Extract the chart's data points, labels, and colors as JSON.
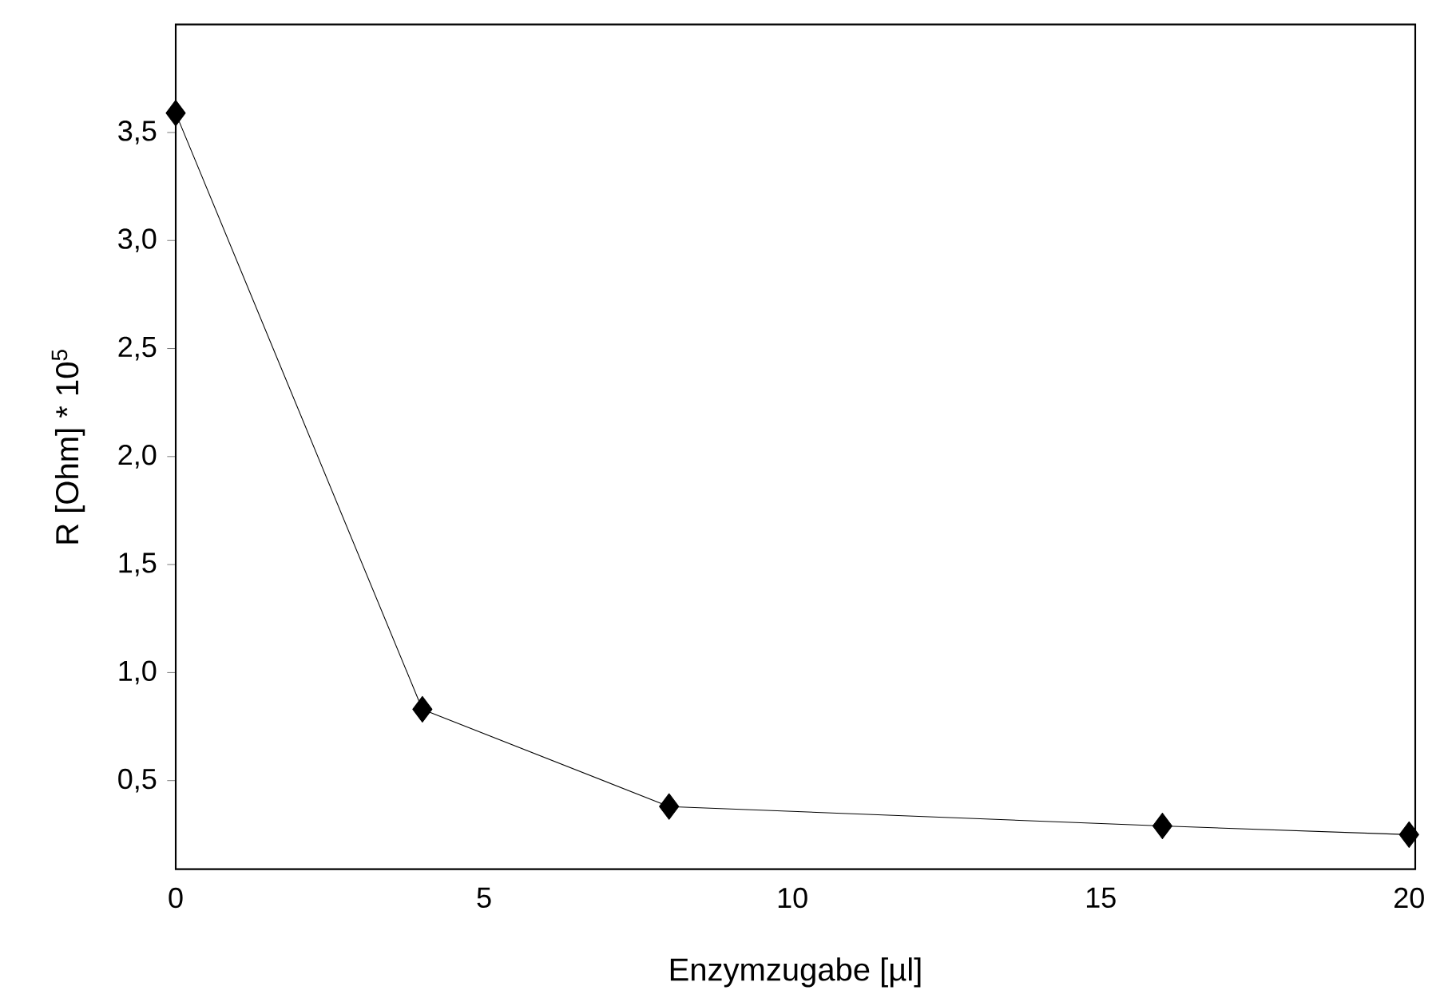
{
  "chart_data": {
    "type": "line",
    "xlabel": "Enzymzugabe [µl]",
    "ylabel": "R [Ohm] * 10$^{5}$",
    "x": [
      0,
      4,
      8,
      16,
      20
    ],
    "series": [
      {
        "color": "#000000",
        "values": [
          3.59,
          0.83,
          0.38,
          0.29,
          0.25
        ]
      }
    ],
    "xlim": [
      0,
      20.1
    ],
    "ylim": [
      0.09,
      4.0
    ],
    "xticks": [
      0,
      5,
      10,
      15,
      20
    ],
    "yticks": [
      {
        "value": 0.5,
        "label": "0,5"
      },
      {
        "value": 1.0,
        "label": "1,0"
      },
      {
        "value": 1.5,
        "label": "1,5"
      },
      {
        "value": 2.0,
        "label": "2,0"
      },
      {
        "value": 2.5,
        "label": "2,5"
      },
      {
        "value": 3.0,
        "label": "3,0"
      },
      {
        "value": 3.5,
        "label": "3,5"
      }
    ],
    "marker": "diamond"
  }
}
